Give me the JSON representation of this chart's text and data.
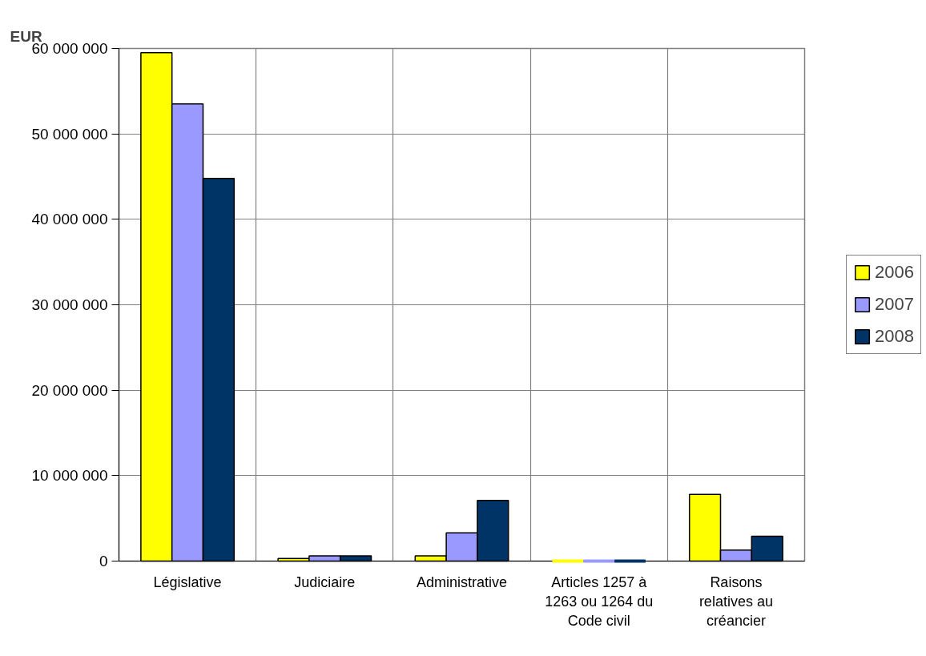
{
  "chart_data": {
    "type": "bar",
    "ylabel": "EUR",
    "categories": [
      "Législative",
      "Judiciaire",
      "Administrative",
      "Articles 1257 à 1263 ou 1264 du Code civil",
      "Raisons relatives au créancier"
    ],
    "series": [
      {
        "name": "2006",
        "color": "#ffff00",
        "values": [
          59500000,
          300000,
          600000,
          0,
          7800000
        ]
      },
      {
        "name": "2007",
        "color": "#9999ff",
        "values": [
          53500000,
          600000,
          3300000,
          0,
          1300000
        ]
      },
      {
        "name": "2008",
        "color": "#003366",
        "values": [
          44800000,
          600000,
          7100000,
          0,
          2900000
        ]
      }
    ],
    "ylim": [
      0,
      60000000
    ],
    "yticks": [
      0,
      {
        "value": 10000000,
        "label": "10 000 000"
      },
      {
        "value": 20000000,
        "label": "20 000 000"
      },
      {
        "value": 30000000,
        "label": "30 000 000"
      },
      {
        "value": 40000000,
        "label": "40 000 000"
      },
      {
        "value": 50000000,
        "label": "50 000 000"
      },
      {
        "value": 60000000,
        "label": "60 000 000"
      }
    ],
    "grid": true,
    "legend": "right"
  }
}
